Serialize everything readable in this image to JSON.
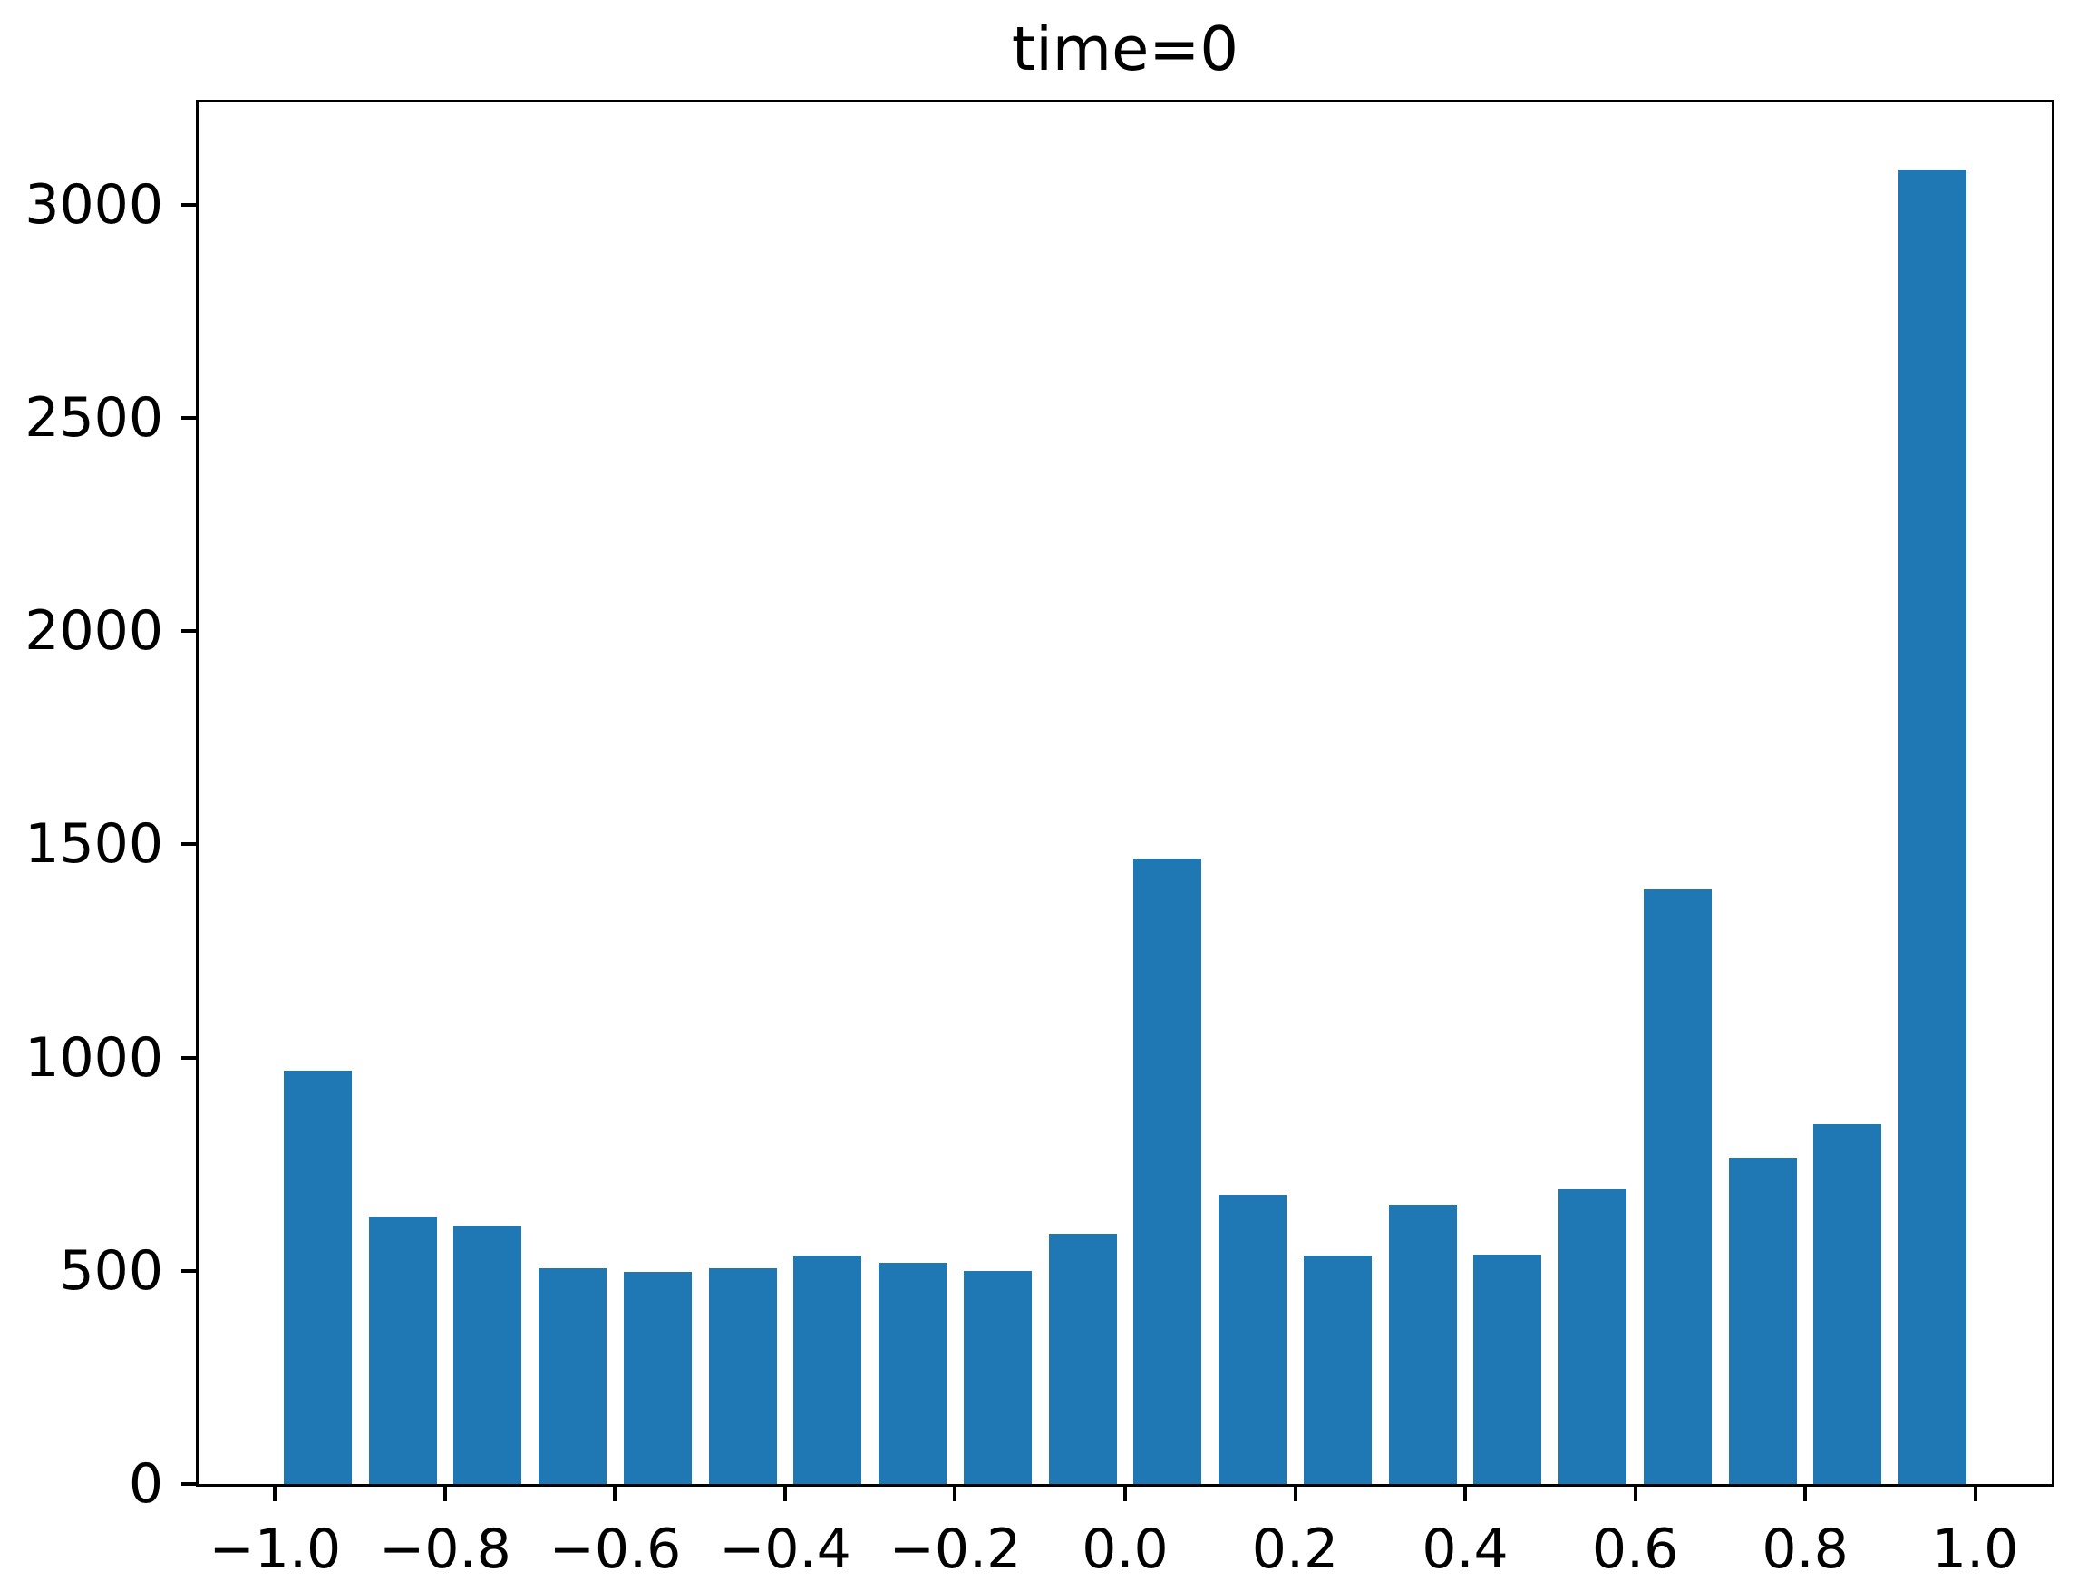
{
  "figure": {
    "title": "time=0"
  },
  "chart_data": {
    "type": "bar",
    "subtype": "histogram",
    "title": "time=0",
    "xlabel": "",
    "ylabel": "",
    "bin_edges": [
      -1.0,
      -0.9,
      -0.8,
      -0.7,
      -0.6,
      -0.5,
      -0.4,
      -0.3,
      -0.2,
      -0.1,
      0.0,
      0.1,
      0.2,
      0.3,
      0.4,
      0.5,
      0.6,
      0.7,
      0.8,
      0.9,
      1.0
    ],
    "categories": [
      -0.95,
      -0.85,
      -0.75,
      -0.65,
      -0.55,
      -0.45,
      -0.35,
      -0.25,
      -0.15,
      -0.05,
      0.05,
      0.15,
      0.25,
      0.35,
      0.45,
      0.55,
      0.65,
      0.75,
      0.85,
      0.95
    ],
    "values": [
      970,
      628,
      605,
      506,
      497,
      506,
      536,
      519,
      499,
      587,
      1468,
      678,
      536,
      655,
      537,
      691,
      1394,
      765,
      845,
      3083
    ],
    "bar_color": "#1f77b4",
    "bar_rel_width": 0.8,
    "xlim": [
      -1.09,
      1.09
    ],
    "ylim": [
      0,
      3240
    ],
    "xtick_values": [
      -1.0,
      -0.8,
      -0.6,
      -0.4,
      -0.2,
      0.0,
      0.2,
      0.4,
      0.6,
      0.8,
      1.0
    ],
    "xtick_labels": [
      "−1.0",
      "−0.8",
      "−0.6",
      "−0.4",
      "−0.2",
      "0.0",
      "0.2",
      "0.4",
      "0.6",
      "0.8",
      "1.0"
    ],
    "ytick_values": [
      0,
      500,
      1000,
      1500,
      2000,
      2500,
      3000
    ],
    "ytick_labels": [
      "0",
      "500",
      "1000",
      "1500",
      "2000",
      "2500",
      "3000"
    ],
    "grid": false,
    "legend": null,
    "spine_color": "#000000",
    "background_color": "#ffffff"
  }
}
